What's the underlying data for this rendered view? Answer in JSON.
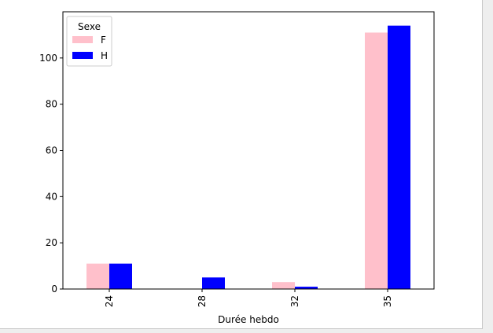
{
  "chart_data": {
    "type": "bar",
    "categories": [
      "24",
      "28",
      "32",
      "35"
    ],
    "series": [
      {
        "name": "F",
        "values": [
          11,
          0,
          3,
          111
        ],
        "color": "#ffc0cb"
      },
      {
        "name": "H",
        "values": [
          11,
          5,
          1,
          114
        ],
        "color": "#0000ff"
      }
    ],
    "xlabel": "Durée hebdo",
    "ylabel": "",
    "ylim": [
      0,
      120
    ],
    "yticks": [
      0,
      20,
      40,
      60,
      80,
      100
    ],
    "legend": {
      "title": "Sexe",
      "placement": "top-left"
    },
    "grid": false
  }
}
